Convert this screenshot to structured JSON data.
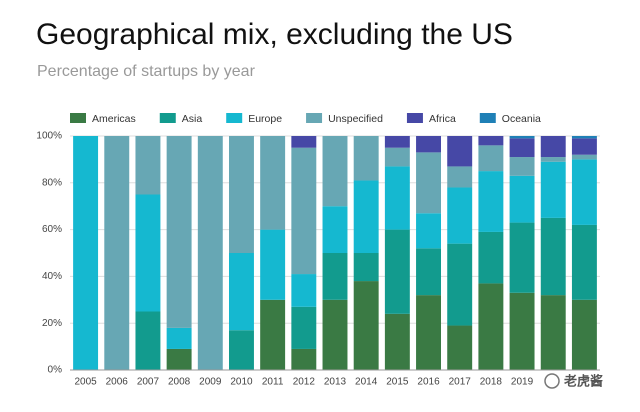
{
  "chart_data": {
    "type": "stacked_bar",
    "title": "Geographical mix, excluding the US",
    "subtitle": "Percentage of startups by year",
    "watermark": "老虎酱",
    "categories": [
      "2005",
      "2006",
      "2007",
      "2008",
      "2009",
      "2010",
      "2011",
      "2012",
      "2013",
      "2014",
      "2015",
      "2016",
      "2017",
      "2018",
      "2019",
      null,
      null
    ],
    "series": [
      {
        "name": "Americas",
        "color": "#3a7a44",
        "values": [
          0,
          0,
          0,
          9,
          0,
          0,
          30,
          9,
          30,
          38,
          24,
          32,
          19,
          37,
          33,
          32,
          30
        ]
      },
      {
        "name": "Asia",
        "color": "#129b8e",
        "values": [
          0,
          0,
          25,
          0,
          0,
          17,
          0,
          18,
          20,
          12,
          36,
          20,
          35,
          22,
          30,
          33,
          32
        ]
      },
      {
        "name": "Europe",
        "color": "#15b8d0",
        "values": [
          100,
          0,
          50,
          9,
          0,
          33,
          30,
          14,
          20,
          31,
          27,
          15,
          24,
          26,
          20,
          24,
          28
        ]
      },
      {
        "name": "Unspecified",
        "color": "#67a7b4",
        "values": [
          0,
          100,
          25,
          82,
          100,
          50,
          40,
          54,
          30,
          19,
          8,
          26,
          9,
          11,
          8,
          2,
          2
        ]
      },
      {
        "name": "Africa",
        "color": "#4648a6",
        "values": [
          0,
          0,
          0,
          0,
          0,
          0,
          0,
          5,
          0,
          0,
          5,
          7,
          13,
          4,
          8,
          9,
          7
        ]
      },
      {
        "name": "Oceania",
        "color": "#1f80b6",
        "values": [
          0,
          0,
          0,
          0,
          0,
          0,
          0,
          0,
          0,
          0,
          0,
          0,
          0,
          0,
          1,
          0,
          1
        ]
      }
    ],
    "ylim": [
      0,
      100
    ],
    "yticks": [
      {
        "value": 0,
        "label": "0%"
      },
      {
        "value": 20,
        "label": "20%"
      },
      {
        "value": 40,
        "label": "40%"
      },
      {
        "value": 60,
        "label": "60%"
      },
      {
        "value": 80,
        "label": "80%"
      },
      {
        "value": 100,
        "label": "100%"
      }
    ],
    "grid": true
  }
}
